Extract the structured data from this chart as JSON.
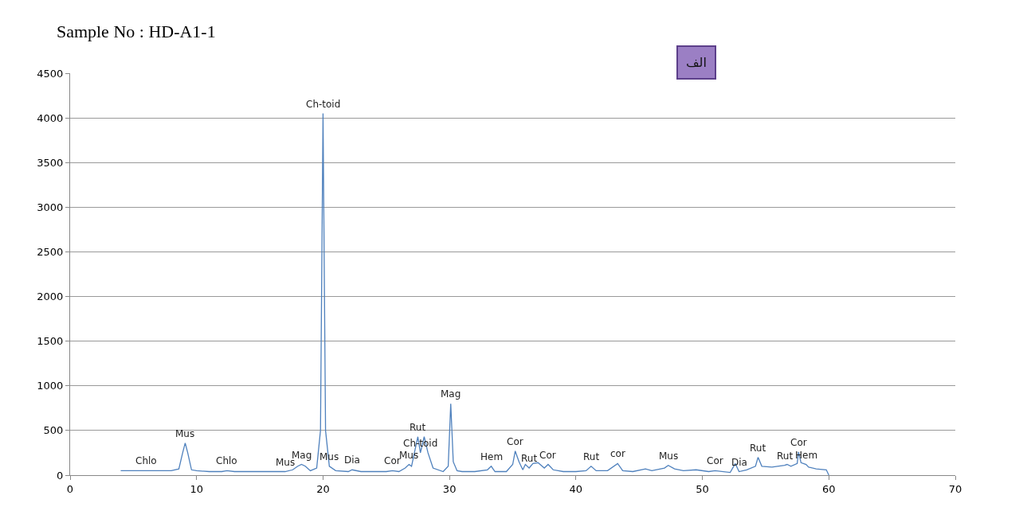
{
  "chart_data": {
    "type": "line",
    "title": "Sample No : HD-A1-1",
    "x": [
      4.0,
      5,
      6,
      7,
      8,
      8.6,
      8.9,
      9.1,
      9.3,
      9.6,
      10,
      11,
      12,
      12.4,
      13,
      14,
      15,
      16,
      17,
      17.6,
      18.0,
      18.3,
      18.6,
      19.0,
      19.5,
      19.8,
      20.0,
      20.2,
      20.5,
      21,
      22,
      22.3,
      23,
      24,
      25,
      25.5,
      26,
      26.5,
      26.8,
      27.0,
      27.3,
      27.5,
      27.7,
      28.0,
      28.3,
      28.7,
      29.5,
      29.9,
      30.1,
      30.3,
      30.6,
      31,
      32,
      33,
      33.3,
      33.6,
      34.5,
      35.0,
      35.2,
      35.5,
      35.8,
      36.0,
      36.3,
      36.6,
      37,
      37.5,
      37.8,
      38.2,
      39,
      40,
      40.8,
      41.2,
      41.6,
      42.5,
      43.3,
      43.7,
      44.5,
      45.5,
      46,
      47,
      47.3,
      47.8,
      48.5,
      49.5,
      50.5,
      51,
      52.2,
      52.6,
      52.9,
      53.5,
      54.2,
      54.4,
      54.7,
      55.5,
      56.5,
      56.7,
      57,
      57.5,
      57.6,
      57.8,
      58.2,
      58.4,
      59,
      59.8,
      60
    ],
    "series": [
      {
        "color": "#4f81bd",
        "values": [
          50,
          50,
          50,
          50,
          50,
          70,
          250,
          360,
          250,
          60,
          50,
          40,
          40,
          50,
          40,
          40,
          40,
          40,
          40,
          60,
          100,
          120,
          100,
          50,
          80,
          500,
          4050,
          500,
          100,
          50,
          40,
          60,
          40,
          40,
          40,
          50,
          40,
          80,
          120,
          100,
          300,
          430,
          250,
          430,
          250,
          80,
          40,
          100,
          800,
          150,
          50,
          40,
          40,
          60,
          100,
          40,
          40,
          120,
          270,
          150,
          60,
          120,
          80,
          130,
          140,
          80,
          120,
          60,
          40,
          40,
          50,
          100,
          50,
          50,
          130,
          50,
          40,
          70,
          50,
          80,
          110,
          70,
          50,
          60,
          40,
          50,
          30,
          130,
          40,
          60,
          100,
          200,
          100,
          90,
          110,
          120,
          100,
          130,
          260,
          140,
          120,
          90,
          70,
          60,
          0
        ]
      }
    ],
    "xlim": [
      0,
      70
    ],
    "xticks": [
      0,
      10,
      20,
      30,
      40,
      50,
      60,
      70
    ],
    "ylim": [
      0,
      4500
    ],
    "yticks": [
      0,
      500,
      1000,
      1500,
      2000,
      2500,
      3000,
      3500,
      4000,
      4500
    ],
    "grid": "y",
    "marker": "none",
    "line_style": "solid",
    "annotations": [
      {
        "text": "Ch-toid",
        "x": 20.0,
        "y": 4050
      },
      {
        "text": "Chlo",
        "x": 6,
        "y": 50
      },
      {
        "text": "Mus",
        "x": 9.1,
        "y": 360
      },
      {
        "text": "Chlo",
        "x": 12.4,
        "y": 50
      },
      {
        "text": "Mus",
        "x": 17,
        "y": 40
      },
      {
        "text": "Mag",
        "x": 18.3,
        "y": 120
      },
      {
        "text": "Mus",
        "x": 20.5,
        "y": 100
      },
      {
        "text": "Dia",
        "x": 22.3,
        "y": 60
      },
      {
        "text": "Cor",
        "x": 25.5,
        "y": 50
      },
      {
        "text": "Mus",
        "x": 26.8,
        "y": 120
      },
      {
        "text": "Rut",
        "x": 27.5,
        "y": 430
      },
      {
        "text": "Ch-toid",
        "x": 27.7,
        "y": 250
      },
      {
        "text": "Mag",
        "x": 30.1,
        "y": 800
      },
      {
        "text": "Hem",
        "x": 33.3,
        "y": 100
      },
      {
        "text": "Cor",
        "x": 35.2,
        "y": 270
      },
      {
        "text": "Rut",
        "x": 36.3,
        "y": 80
      },
      {
        "text": "Cor",
        "x": 37.8,
        "y": 120
      },
      {
        "text": "Rut",
        "x": 41.2,
        "y": 100
      },
      {
        "text": "cor",
        "x": 43.3,
        "y": 130
      },
      {
        "text": "Mus",
        "x": 47.3,
        "y": 110
      },
      {
        "text": "Cor",
        "x": 51,
        "y": 50
      },
      {
        "text": "Dia",
        "x": 52.9,
        "y": 40
      },
      {
        "text": "Rut",
        "x": 54.4,
        "y": 200
      },
      {
        "text": "Rut",
        "x": 56.5,
        "y": 110
      },
      {
        "text": "Cor",
        "x": 57.6,
        "y": 260
      },
      {
        "text": "Hem",
        "x": 58.2,
        "y": 120
      },
      "الف"
    ]
  }
}
